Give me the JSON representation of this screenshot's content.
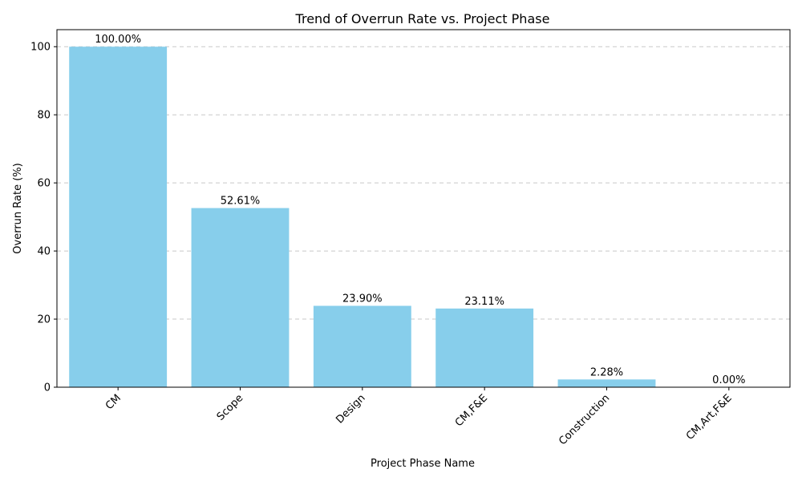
{
  "chart_data": {
    "type": "bar",
    "title": "Trend of Overrun Rate vs. Project Phase",
    "xlabel": "Project Phase Name",
    "ylabel": "Overrun Rate (%)",
    "categories": [
      "CM",
      "Scope",
      "Design",
      "CM,F&E",
      "Construction",
      "CM,Art,F&E"
    ],
    "values": [
      100.0,
      52.61,
      23.9,
      23.11,
      2.28,
      0.0
    ],
    "data_labels": [
      "100.00%",
      "52.61%",
      "23.90%",
      "23.11%",
      "2.28%",
      "0.00%"
    ],
    "ylim": [
      0,
      105
    ],
    "yticks": [
      0,
      20,
      40,
      60,
      80,
      100
    ],
    "grid": "y-dashed",
    "bar_color": "#87ceeb",
    "legend": "none"
  }
}
